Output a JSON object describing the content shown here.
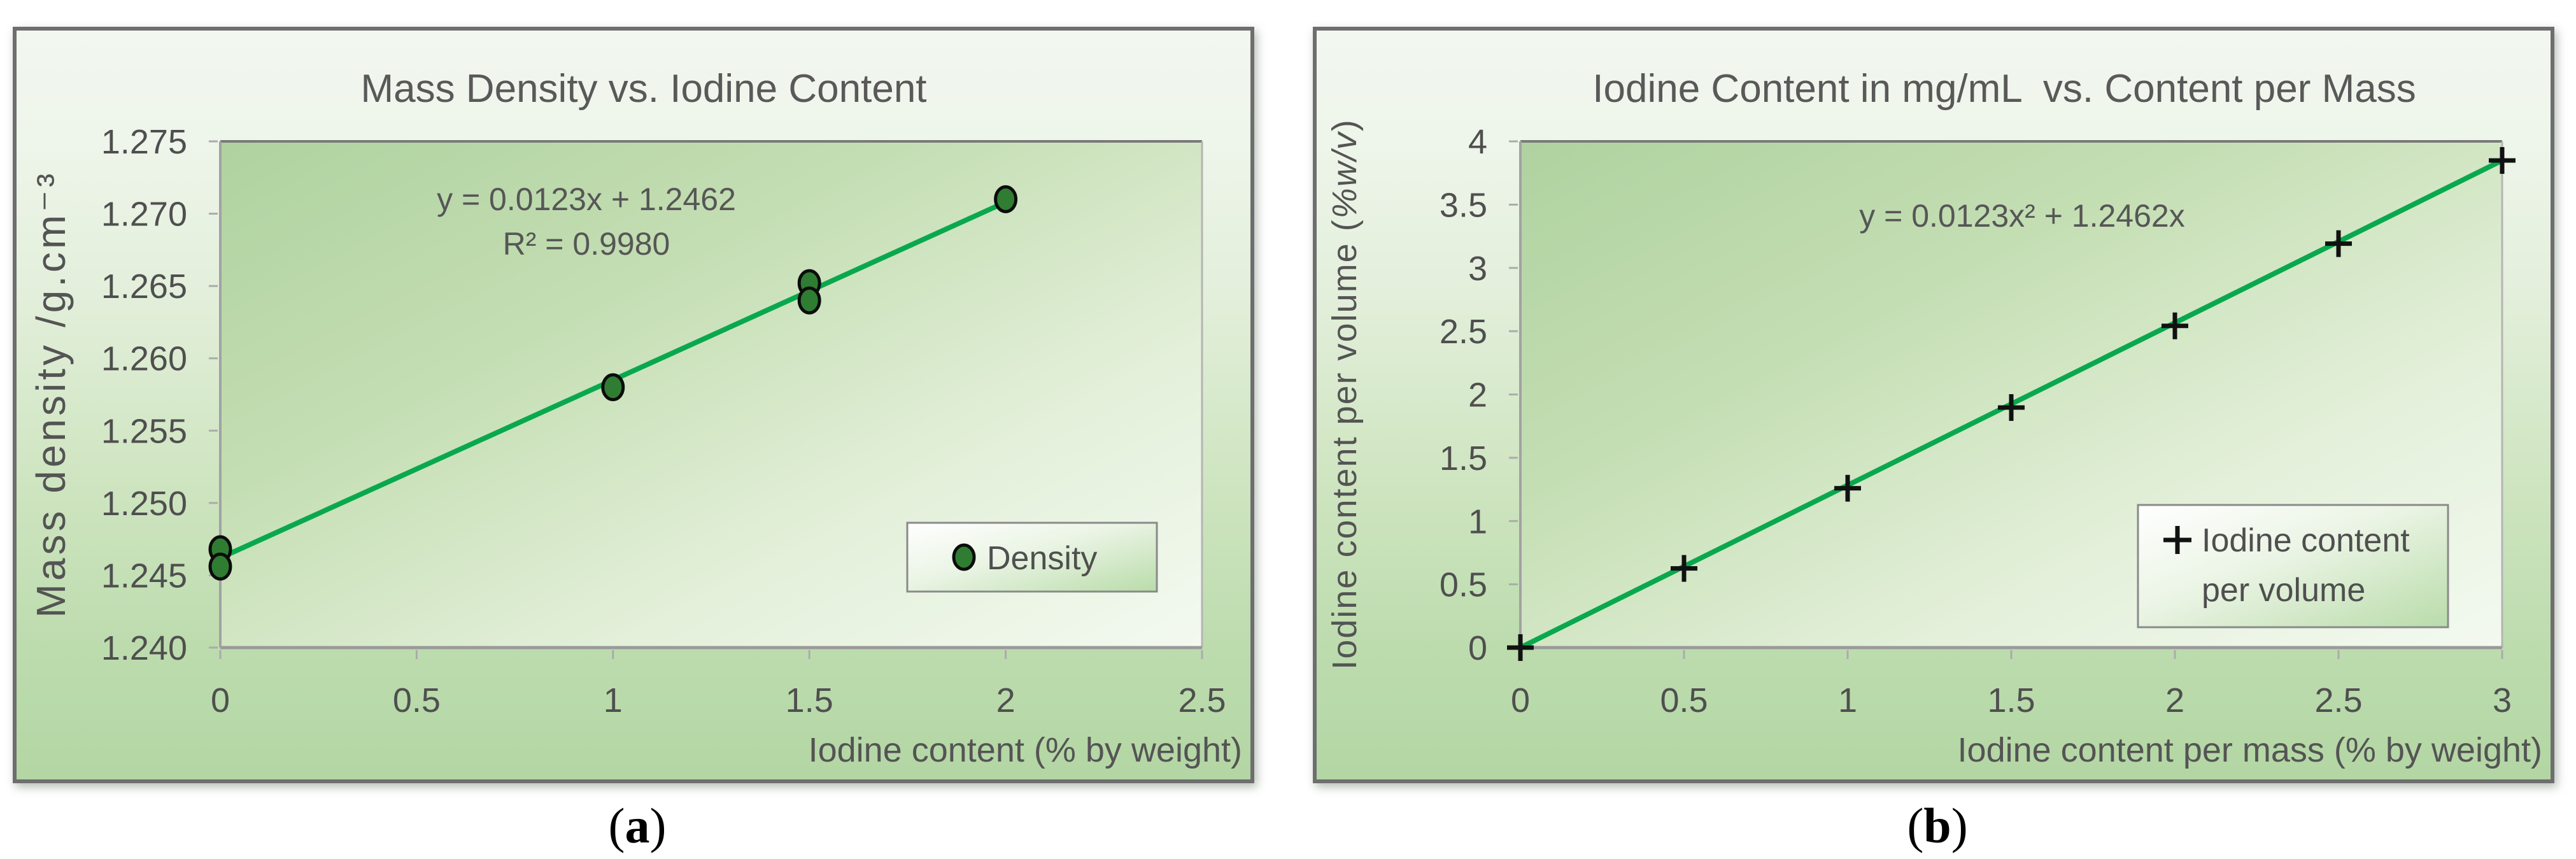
{
  "page": {
    "background": "#ffffff"
  },
  "colors": {
    "panel_border": "#6e6e6e",
    "chart_bg_top": "#f2f7f0",
    "chart_bg_bottom": "#b3d6a4",
    "plot_bg_dark": "#afd2a0",
    "plot_bg_light": "#f3f9f0",
    "grid_green": "#58b25c",
    "trend_line": "#0aa84e",
    "point_fill": "#2f7d32",
    "point_stroke": "#0c0c0c",
    "plus_marker": "#111111",
    "axis_gray": "#9a9a9a",
    "text_gray": "#545454"
  },
  "captions": [
    {
      "open": "(",
      "letter": "a",
      "close": ")"
    },
    {
      "open": "(",
      "letter": "b",
      "close": ")"
    }
  ],
  "chart_data": [
    {
      "type": "scatter",
      "title": "Mass Density vs. Iodine Content",
      "xlabel": "Iodine content (% by weight)",
      "ylabel": "Mass density /g.cm⁻³",
      "xlim": [
        0,
        2.5
      ],
      "ylim": [
        1.24,
        1.275
      ],
      "grid": true,
      "x_ticks": [
        0,
        0.5,
        1,
        1.5,
        2,
        2.5
      ],
      "x_tick_labels": [
        "0",
        "0.5",
        "1",
        "1.5",
        "2",
        "2.5"
      ],
      "y_ticks": [
        1.24,
        1.245,
        1.25,
        1.255,
        1.26,
        1.265,
        1.27,
        1.275
      ],
      "y_tick_labels": [
        "1.240",
        "1.245",
        "1.250",
        "1.255",
        "1.260",
        "1.265",
        "1.270",
        "1.275"
      ],
      "annotation": {
        "line1": "y = 0.0123x + 1.2462",
        "line2": "R² = 0.9980"
      },
      "legend": {
        "labels": [
          "Density"
        ],
        "marker": "circle",
        "position": "lower-right"
      },
      "series": [
        {
          "name": "Density",
          "marker": "circle",
          "points": [
            [
              0,
              1.2468
            ],
            [
              0,
              1.2456
            ],
            [
              1,
              1.258
            ],
            [
              1.5,
              1.2652
            ],
            [
              1.5,
              1.264
            ],
            [
              2,
              1.271
            ]
          ]
        }
      ],
      "trendline": {
        "start": [
          0,
          1.2462
        ],
        "end": [
          2,
          1.2708
        ]
      }
    },
    {
      "type": "scatter",
      "title": "Iodine Content in mg/mL  vs. Content per Mass",
      "xlabel": "Iodine content per mass (% by weight)",
      "ylabel": "Iodine content per volume (%w/v)",
      "ylabel_main": "Iodine content per volume (",
      "ylabel_italic": "%w/v",
      "ylabel_close": ")",
      "xlim": [
        0,
        3
      ],
      "ylim": [
        0,
        4
      ],
      "grid": true,
      "x_ticks": [
        0,
        0.5,
        1,
        1.5,
        2,
        2.5,
        3
      ],
      "x_tick_labels": [
        "0",
        "0.5",
        "1",
        "1.5",
        "2",
        "2.5",
        "3"
      ],
      "y_ticks": [
        0,
        0.5,
        1,
        1.5,
        2,
        2.5,
        3,
        3.5,
        4
      ],
      "y_tick_labels": [
        "0",
        "0.5",
        "1",
        "1.5",
        "2",
        "2.5",
        "3",
        "3.5",
        "4"
      ],
      "annotation": {
        "line1": "y = 0.0123x² + 1.2462x"
      },
      "legend": {
        "labels": [
          "Iodine content",
          "per volume"
        ],
        "marker": "plus",
        "position": "lower-right"
      },
      "series": [
        {
          "name": "Iodine content per volume",
          "marker": "plus",
          "points": [
            [
              0,
              0
            ],
            [
              0.5,
              0.626
            ],
            [
              1,
              1.259
            ],
            [
              1.5,
              1.897
            ],
            [
              2,
              2.542
            ],
            [
              2.5,
              3.192
            ],
            [
              3,
              3.849
            ]
          ]
        }
      ],
      "trendline": {
        "start": [
          0,
          0
        ],
        "end": [
          3,
          3.8493
        ]
      }
    }
  ]
}
